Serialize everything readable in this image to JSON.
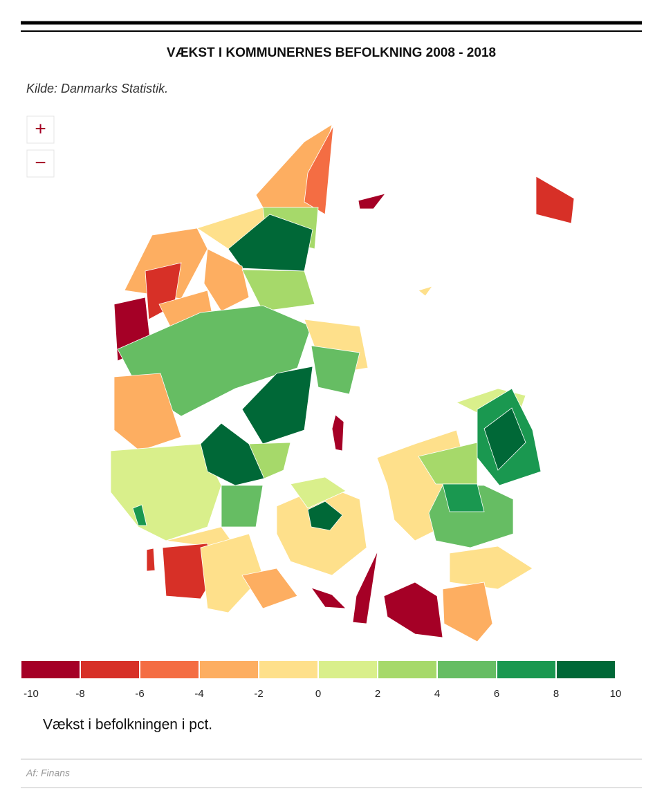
{
  "header": {
    "title": "VÆKST I KOMMUNERNES BEFOLKNING 2008 - 2018",
    "source": "Kilde: Danmarks Statistik."
  },
  "map": {
    "zoom_in": "+",
    "zoom_out": "−"
  },
  "legend": {
    "ticks": [
      -10,
      -8,
      -6,
      -4,
      -2,
      0,
      2,
      4,
      6,
      8,
      10
    ],
    "colors": [
      "#a50026",
      "#d73027",
      "#f46d43",
      "#fdae61",
      "#fee08b",
      "#d9ef8b",
      "#a6d96a",
      "#66bd63",
      "#1a9850",
      "#006837"
    ],
    "label": "Vækst i befolkningen i pct."
  },
  "footer": "Af: Finans"
}
